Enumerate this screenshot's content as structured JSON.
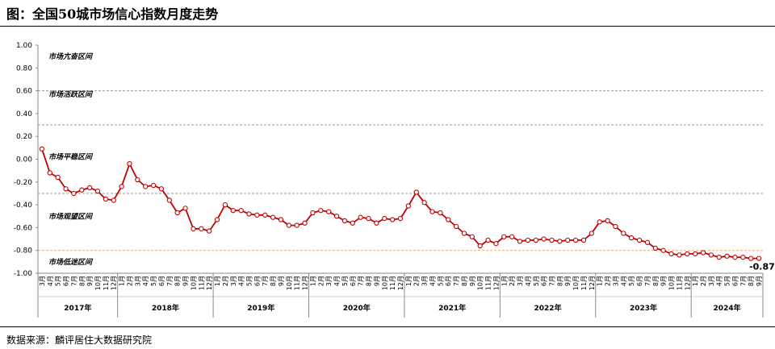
{
  "title": "图：全国50城市场信心指数月度走势",
  "source": "数据来源：麟评居住大数据研究院",
  "chart_data": {
    "type": "line",
    "ylim": [
      -1.0,
      1.0
    ],
    "y_ticks": [
      "1.00",
      "0.80",
      "0.60",
      "0.40",
      "0.20",
      "0.00",
      "-0.20",
      "-0.40",
      "-0.60",
      "-0.80",
      "-1.00"
    ],
    "zones": [
      {
        "label": "市场亢奋区间",
        "y": 0.9
      },
      {
        "label": "市场活跃区间",
        "y": 0.57
      },
      {
        "label": "市场平稳区间",
        "y": 0.02
      },
      {
        "label": "市场观望区间",
        "y": -0.5
      },
      {
        "label": "市场低迷区间",
        "y": -0.9
      }
    ],
    "dashed_lines": [
      0.6,
      0.3,
      -0.3
    ],
    "reference_line": -0.8,
    "colors": {
      "line": "#c00000",
      "reference": "#f4b183",
      "grid": "#999999"
    },
    "years": [
      {
        "label": "2017年",
        "months": [
          3,
          4,
          5,
          6,
          7,
          8,
          9,
          10,
          11,
          12
        ]
      },
      {
        "label": "2018年",
        "months": [
          1,
          2,
          3,
          4,
          5,
          6,
          7,
          8,
          9,
          10,
          11,
          12
        ]
      },
      {
        "label": "2019年",
        "months": [
          1,
          2,
          3,
          4,
          5,
          6,
          7,
          8,
          9,
          10,
          11,
          12
        ]
      },
      {
        "label": "2020年",
        "months": [
          1,
          2,
          3,
          4,
          5,
          6,
          7,
          8,
          9,
          10,
          11,
          12
        ]
      },
      {
        "label": "2021年",
        "months": [
          1,
          2,
          3,
          4,
          5,
          6,
          7,
          8,
          9,
          10,
          11,
          12
        ]
      },
      {
        "label": "2022年",
        "months": [
          1,
          2,
          3,
          4,
          5,
          6,
          7,
          8,
          9,
          10,
          11,
          12
        ]
      },
      {
        "label": "2023年",
        "months": [
          1,
          2,
          3,
          4,
          5,
          6,
          7,
          8,
          9,
          10,
          11,
          12
        ]
      },
      {
        "label": "2024年",
        "months": [
          1,
          2,
          3,
          4,
          5,
          6,
          7,
          8,
          9
        ]
      }
    ],
    "month_suffix": "月",
    "values": [
      0.09,
      -0.12,
      -0.16,
      -0.26,
      -0.3,
      -0.27,
      -0.25,
      -0.28,
      -0.35,
      -0.36,
      -0.24,
      -0.04,
      -0.18,
      -0.24,
      -0.23,
      -0.26,
      -0.36,
      -0.47,
      -0.43,
      -0.61,
      -0.61,
      -0.63,
      -0.53,
      -0.4,
      -0.45,
      -0.45,
      -0.48,
      -0.49,
      -0.49,
      -0.51,
      -0.53,
      -0.58,
      -0.58,
      -0.56,
      -0.47,
      -0.45,
      -0.46,
      -0.5,
      -0.54,
      -0.56,
      -0.51,
      -0.52,
      -0.56,
      -0.52,
      -0.53,
      -0.52,
      -0.41,
      -0.29,
      -0.38,
      -0.46,
      -0.47,
      -0.53,
      -0.59,
      -0.65,
      -0.68,
      -0.76,
      -0.71,
      -0.74,
      -0.68,
      -0.68,
      -0.72,
      -0.71,
      -0.71,
      -0.7,
      -0.71,
      -0.72,
      -0.71,
      -0.71,
      -0.71,
      -0.65,
      -0.55,
      -0.54,
      -0.59,
      -0.65,
      -0.69,
      -0.71,
      -0.73,
      -0.78,
      -0.8,
      -0.83,
      -0.84,
      -0.83,
      -0.83,
      -0.82,
      -0.84,
      -0.86,
      -0.85,
      -0.86,
      -0.86,
      -0.87,
      -0.87
    ],
    "end_label": "-0.87"
  }
}
